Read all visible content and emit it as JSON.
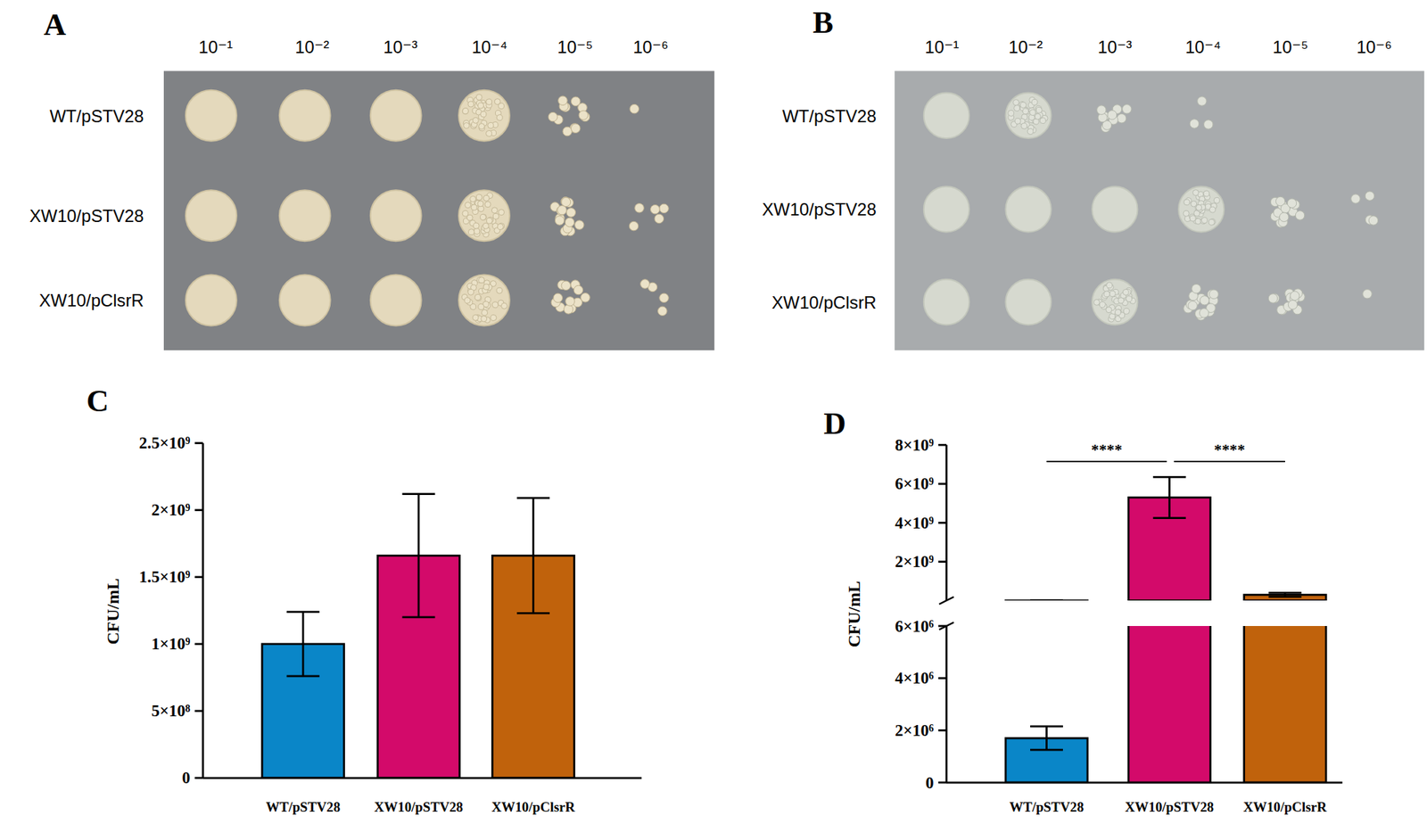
{
  "plates": [
    {
      "title": "A",
      "dilutions": [
        "10⁻¹",
        "10⁻²",
        "10⁻³",
        "10⁻⁴",
        "10⁻⁵",
        "10⁻⁶"
      ],
      "strains": [
        "WT/pSTV28",
        "XW10/pSTV28",
        "XW10/pClsrR"
      ]
    },
    {
      "title": "B",
      "dilutions": [
        "10⁻¹",
        "10⁻²",
        "10⁻³",
        "10⁻⁴",
        "10⁻⁵",
        "10⁻⁶"
      ],
      "strains": [
        "WT/pSTV28",
        "XW10/pSTV28",
        "XW10/pClsrR"
      ]
    }
  ],
  "chart_data": [
    {
      "type": "bar",
      "title": "C",
      "y_label": "CFU/mL",
      "categories": [
        "WT/pSTV28",
        "XW10/pSTV28",
        "XW10/pClsrR"
      ],
      "values": [
        1000000000,
        1660000000,
        1660000000
      ],
      "errors": [
        240000000,
        460000000,
        430000000
      ],
      "colors": [
        "#0a86c8",
        "#d30a6a",
        "#c0620c"
      ],
      "ylim": [
        0,
        2500000000
      ],
      "yticks": [
        0,
        {
          "value": 500000000,
          "label": "5×10⁸"
        },
        {
          "value": 1000000000,
          "label": "1×10⁹"
        },
        {
          "value": 1500000000,
          "label": "1.5×10⁹"
        },
        {
          "value": 2000000000,
          "label": "2×10⁹"
        },
        {
          "value": 2500000000,
          "label": "2.5×10⁹"
        }
      ]
    },
    {
      "type": "bar",
      "title": "D",
      "y_label": "CFU/mL",
      "categories": [
        "WT/pSTV28",
        "XW10/pSTV28",
        "XW10/pClsrR"
      ],
      "values": [
        1700000,
        5300000000,
        300000000
      ],
      "errors": [
        450000,
        1050000000,
        100000000
      ],
      "colors": [
        "#0a86c8",
        "#d30a6a",
        "#c0620c"
      ],
      "ylim": [
        [
          0,
          6000000
        ],
        [
          6000000,
          8000000000
        ]
      ],
      "yticks": [
        [
          0,
          {
            "value": 2000000,
            "label": "2×10⁶"
          },
          {
            "value": 4000000,
            "label": "4×10⁶"
          },
          {
            "value": 6000000,
            "label": "6×10⁶"
          }
        ],
        [
          {
            "value": 2000000000,
            "label": "2×10⁹"
          },
          {
            "value": 4000000000,
            "label": "4×10⁹"
          },
          {
            "value": 6000000000,
            "label": "6×10⁹"
          },
          {
            "value": 8000000000,
            "label": "8×10⁹"
          }
        ]
      ],
      "annotations": [
        {
          "text": "****",
          "between": [
            "WT/pSTV28",
            "XW10/pSTV28"
          ]
        },
        {
          "text": "****",
          "between": [
            "XW10/pSTV28",
            "XW10/pClsrR"
          ]
        }
      ]
    }
  ]
}
